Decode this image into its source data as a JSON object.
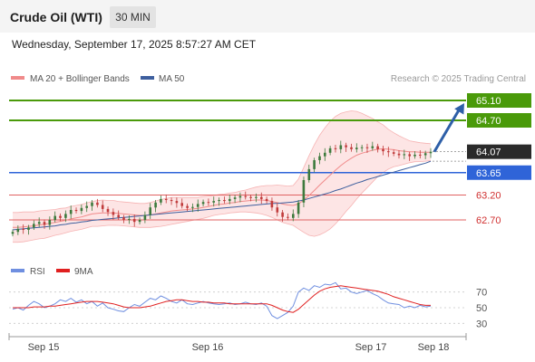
{
  "header": {
    "instrument": "Crude Oil (WTI)",
    "timeframe": "30 MIN",
    "timestamp": "Wednesday, September 17, 2025 8:57:27 AM CET"
  },
  "legend": {
    "ma20": "MA 20 + Bollinger Bands",
    "ma50": "MA 50",
    "credit": "Research © 2025 Trading Central",
    "rsi": "RSI",
    "rsi_ma": "9MA"
  },
  "colors": {
    "resistance": "#4a9a0a",
    "support": "#2f64d8",
    "red_level": "#e06262",
    "last_price": "#2a2a2a",
    "ma20": "#f08a8a",
    "ma50": "#3e5f9e",
    "bollinger_fill": "#fde0e0",
    "candle_up": "#3d7a3d",
    "candle_down": "#c03b3b",
    "rsi": "#6f8fe0",
    "rsi_ma": "#e02020",
    "arrow": "#2e5fa8"
  },
  "chart_data": [
    {
      "type": "candlestick",
      "x_labels": [
        "Sep 15",
        "Sep 16",
        "Sep 17",
        "Sep 18"
      ],
      "ylim": [
        62.3,
        65.3
      ],
      "levels": [
        {
          "value": 65.1,
          "label": "65.10",
          "kind": "resistance"
        },
        {
          "value": 64.7,
          "label": "64.70",
          "kind": "resistance"
        },
        {
          "value": 64.07,
          "label": "64.07",
          "kind": "last"
        },
        {
          "value": 63.65,
          "label": "63.65",
          "kind": "support"
        },
        {
          "value": 63.2,
          "label": "63.20",
          "kind": "level"
        },
        {
          "value": 62.7,
          "label": "62.70",
          "kind": "level"
        }
      ],
      "close": [
        62.46,
        62.52,
        62.5,
        62.55,
        62.62,
        62.66,
        62.6,
        62.7,
        62.78,
        62.74,
        62.82,
        62.9,
        62.88,
        62.94,
        62.98,
        63.05,
        63.0,
        62.92,
        62.86,
        62.8,
        62.75,
        62.7,
        62.72,
        62.66,
        62.7,
        62.8,
        62.95,
        63.05,
        63.12,
        63.1,
        63.08,
        63.04,
        62.98,
        62.94,
        62.96,
        63.02,
        63.06,
        63.05,
        63.08,
        63.1,
        63.08,
        63.12,
        63.15,
        63.18,
        63.16,
        63.14,
        63.16,
        63.12,
        63.08,
        62.95,
        62.85,
        62.76,
        62.74,
        62.82,
        63.05,
        63.5,
        63.72,
        63.9,
        63.98,
        64.05,
        64.14,
        64.12,
        64.2,
        64.16,
        64.12,
        64.15,
        64.16,
        64.14,
        64.18,
        64.12,
        64.08,
        64.06,
        64.03,
        64.0,
        64.02,
        63.98,
        64.01,
        64.0,
        64.04,
        64.07
      ],
      "ma20": [
        62.55,
        62.55,
        62.56,
        62.57,
        62.58,
        62.6,
        62.61,
        62.63,
        62.65,
        62.67,
        62.69,
        62.72,
        62.74,
        62.76,
        62.79,
        62.82,
        62.83,
        62.84,
        62.84,
        62.84,
        62.83,
        62.82,
        62.81,
        62.8,
        62.79,
        62.79,
        62.8,
        62.82,
        62.84,
        62.86,
        62.88,
        62.89,
        62.9,
        62.91,
        62.92,
        62.93,
        62.95,
        62.97,
        62.99,
        63.01,
        63.02,
        63.04,
        63.05,
        63.07,
        63.08,
        63.09,
        63.1,
        63.1,
        63.09,
        63.07,
        63.05,
        63.02,
        63.0,
        62.99,
        63.02,
        63.1,
        63.19,
        63.29,
        63.4,
        63.5,
        63.6,
        63.7,
        63.79,
        63.87,
        63.94,
        64.0,
        64.04,
        64.07,
        64.1,
        64.12,
        64.13,
        64.12,
        64.11,
        64.09,
        64.08,
        64.07,
        64.07,
        64.06,
        64.06,
        64.06
      ],
      "ma50": [
        62.5,
        62.51,
        62.52,
        62.53,
        62.54,
        62.55,
        62.56,
        62.57,
        62.58,
        62.6,
        62.61,
        62.63,
        62.64,
        62.66,
        62.67,
        62.69,
        62.7,
        62.71,
        62.72,
        62.73,
        62.74,
        62.75,
        62.76,
        62.77,
        62.78,
        62.79,
        62.8,
        62.81,
        62.82,
        62.83,
        62.84,
        62.85,
        62.86,
        62.87,
        62.88,
        62.89,
        62.9,
        62.91,
        62.92,
        62.93,
        62.94,
        62.95,
        62.96,
        62.97,
        62.98,
        62.99,
        63.0,
        63.01,
        63.02,
        63.03,
        63.03,
        63.04,
        63.05,
        63.06,
        63.08,
        63.1,
        63.13,
        63.16,
        63.19,
        63.22,
        63.25,
        63.29,
        63.32,
        63.36,
        63.4,
        63.44,
        63.47,
        63.51,
        63.54,
        63.57,
        63.6,
        63.63,
        63.66,
        63.69,
        63.72,
        63.75,
        63.78,
        63.81,
        63.84,
        63.88
      ],
      "bb_width": [
        0.3,
        0.3,
        0.3,
        0.29,
        0.28,
        0.28,
        0.28,
        0.27,
        0.26,
        0.26,
        0.25,
        0.25,
        0.25,
        0.25,
        0.25,
        0.25,
        0.26,
        0.26,
        0.25,
        0.25,
        0.24,
        0.24,
        0.24,
        0.24,
        0.24,
        0.24,
        0.25,
        0.26,
        0.27,
        0.27,
        0.27,
        0.26,
        0.25,
        0.24,
        0.23,
        0.22,
        0.22,
        0.21,
        0.2,
        0.2,
        0.2,
        0.2,
        0.2,
        0.21,
        0.22,
        0.24,
        0.26,
        0.28,
        0.3,
        0.32,
        0.35,
        0.37,
        0.38,
        0.4,
        0.5,
        0.65,
        0.8,
        0.92,
        1.0,
        1.05,
        1.08,
        1.08,
        1.05,
        1.0,
        0.95,
        0.88,
        0.8,
        0.72,
        0.64,
        0.55,
        0.48,
        0.4,
        0.34,
        0.3,
        0.26,
        0.22,
        0.2,
        0.19,
        0.18,
        0.17
      ],
      "forecast_arrow": {
        "from": 64.07,
        "to": 65.1
      }
    },
    {
      "type": "line",
      "title": "RSI",
      "y_ticks": [
        70,
        50,
        30
      ],
      "ylim": [
        20,
        80
      ],
      "rsi": [
        48,
        50,
        47,
        53,
        58,
        55,
        50,
        52,
        55,
        60,
        58,
        62,
        57,
        60,
        55,
        58,
        52,
        56,
        50,
        48,
        46,
        45,
        50,
        54,
        52,
        57,
        62,
        60,
        65,
        62,
        58,
        56,
        60,
        55,
        54,
        56,
        58,
        56,
        55,
        54,
        55,
        56,
        54,
        55,
        57,
        55,
        54,
        56,
        52,
        40,
        36,
        40,
        44,
        52,
        70,
        75,
        72,
        78,
        76,
        80,
        79,
        82,
        74,
        75,
        70,
        68,
        70,
        72,
        68,
        65,
        60,
        56,
        55,
        54,
        50,
        52,
        50,
        53,
        51,
        52
      ],
      "rsi_ma": [
        50,
        50,
        50,
        50,
        51,
        51,
        51,
        52,
        52,
        53,
        54,
        55,
        56,
        57,
        58,
        58,
        58,
        57,
        56,
        55,
        53,
        51,
        50,
        50,
        50,
        51,
        52,
        54,
        56,
        58,
        59,
        60,
        60,
        59,
        58,
        58,
        57,
        57,
        56,
        56,
        56,
        55,
        55,
        55,
        55,
        55,
        55,
        55,
        55,
        53,
        50,
        47,
        45,
        44,
        48,
        54,
        60,
        66,
        71,
        74,
        76,
        77,
        78,
        77,
        76,
        75,
        74,
        73,
        72,
        71,
        69,
        67,
        64,
        62,
        60,
        58,
        56,
        54,
        53,
        53
      ]
    }
  ]
}
